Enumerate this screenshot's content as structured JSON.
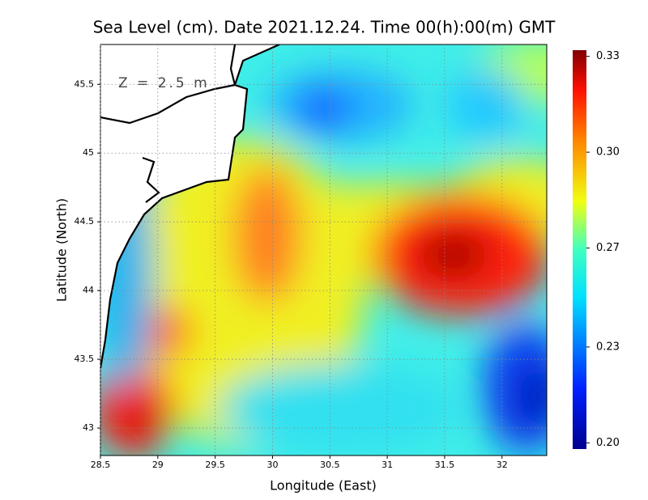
{
  "chart_data": {
    "type": "heatmap",
    "title": "Sea Level (cm). Date 2021.12.24. Time 00(h):00(m) GMT",
    "annotation": "Z = 2.5 m",
    "xlabel": "Longitude (East)",
    "ylabel": "Latitude (North)",
    "xlim": [
      28.5,
      32.39
    ],
    "ylim": [
      42.8,
      45.79
    ],
    "xticks": [
      28.5,
      29,
      29.5,
      30,
      30.5,
      31,
      31.5,
      32
    ],
    "yticks": [
      43,
      43.5,
      44,
      44.5,
      45,
      45.5
    ],
    "grid": true,
    "colorbar": {
      "lim": [
        0.201,
        0.33
      ],
      "ticks": [
        {
          "value": 0.203,
          "label": "0.20"
        },
        {
          "value": 0.234,
          "label": "0.23"
        },
        {
          "value": 0.266,
          "label": "0.27"
        },
        {
          "value": 0.297,
          "label": "0.30"
        },
        {
          "value": 0.328,
          "label": "0.33"
        }
      ]
    }
  }
}
